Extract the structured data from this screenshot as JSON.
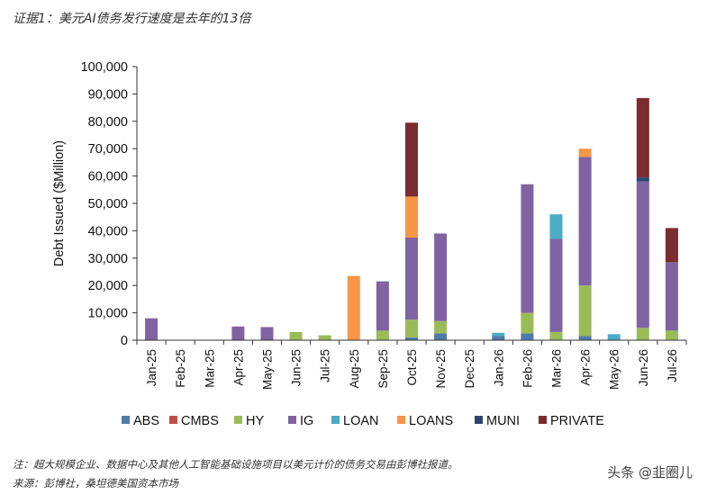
{
  "heading": "证据1：美元AI债务发行速度是去年的13倍",
  "note": "注：超大规模企业、数据中心及其他人工智能基础设施项目以美元计价的债务交易由彭博社报道。",
  "source": "来源：彭博社，桑坦德美国资本市场",
  "watermark": "头条 @韭圈儿",
  "chart_data": {
    "type": "bar",
    "stacked": true,
    "title": "",
    "xlabel": "",
    "ylabel": "Debt Issued ($Million)",
    "ylim": [
      0,
      100000
    ],
    "yticks": [
      0,
      10000,
      20000,
      30000,
      40000,
      50000,
      60000,
      70000,
      80000,
      90000,
      100000
    ],
    "ytick_labels": [
      "0",
      "10,000",
      "20,000",
      "30,000",
      "40,000",
      "50,000",
      "60,000",
      "70,000",
      "80,000",
      "90,000",
      "100,000"
    ],
    "legend_position": "bottom",
    "grid": false,
    "categories": [
      "Jan-25",
      "Feb-25",
      "Mar-25",
      "Apr-25",
      "May-25",
      "Jun-25",
      "Jul-25",
      "Aug-25",
      "Sep-25",
      "Oct-25",
      "Nov-25",
      "Dec-25",
      "Jan-26",
      "Feb-26",
      "Mar-26",
      "Apr-26",
      "May-26",
      "Jun-26",
      "Jul-26"
    ],
    "series": [
      {
        "name": "ABS",
        "color": "#4F7BA8",
        "values": [
          0,
          0,
          0,
          0,
          0,
          0,
          0,
          0,
          0,
          1000,
          2500,
          0,
          1500,
          2500,
          0,
          1500,
          0,
          0,
          0
        ]
      },
      {
        "name": "CMBS",
        "color": "#C0504D",
        "values": [
          0,
          0,
          0,
          0,
          0,
          0,
          0,
          0,
          0,
          0,
          0,
          0,
          0,
          0,
          0,
          0,
          0,
          0,
          0
        ]
      },
      {
        "name": "HY",
        "color": "#9BBB59",
        "values": [
          0,
          0,
          0,
          0,
          0,
          3000,
          1800,
          0,
          3500,
          6500,
          4500,
          0,
          0,
          7500,
          3000,
          18500,
          0,
          4500,
          3500
        ]
      },
      {
        "name": "IG",
        "color": "#8064A2",
        "values": [
          8000,
          0,
          0,
          5000,
          4800,
          0,
          0,
          0,
          18000,
          30000,
          32000,
          0,
          0,
          47000,
          34000,
          47000,
          0,
          53500,
          25000
        ]
      },
      {
        "name": "LOAN",
        "color": "#4BACC6",
        "values": [
          0,
          0,
          0,
          0,
          0,
          0,
          0,
          0,
          0,
          0,
          0,
          0,
          1200,
          0,
          9000,
          0,
          2200,
          0,
          0
        ]
      },
      {
        "name": "LOANS",
        "color": "#F79646",
        "values": [
          0,
          0,
          0,
          0,
          0,
          0,
          0,
          23500,
          0,
          15000,
          0,
          0,
          0,
          0,
          0,
          3000,
          0,
          0,
          0
        ]
      },
      {
        "name": "MUNI",
        "color": "#2C4770",
        "values": [
          0,
          0,
          0,
          0,
          0,
          0,
          0,
          0,
          0,
          0,
          0,
          0,
          0,
          0,
          0,
          0,
          0,
          1500,
          0
        ]
      },
      {
        "name": "PRIVATE",
        "color": "#7B2C2E",
        "values": [
          0,
          0,
          0,
          0,
          0,
          0,
          0,
          0,
          0,
          27000,
          0,
          0,
          0,
          0,
          0,
          0,
          0,
          29000,
          12500
        ]
      }
    ]
  }
}
